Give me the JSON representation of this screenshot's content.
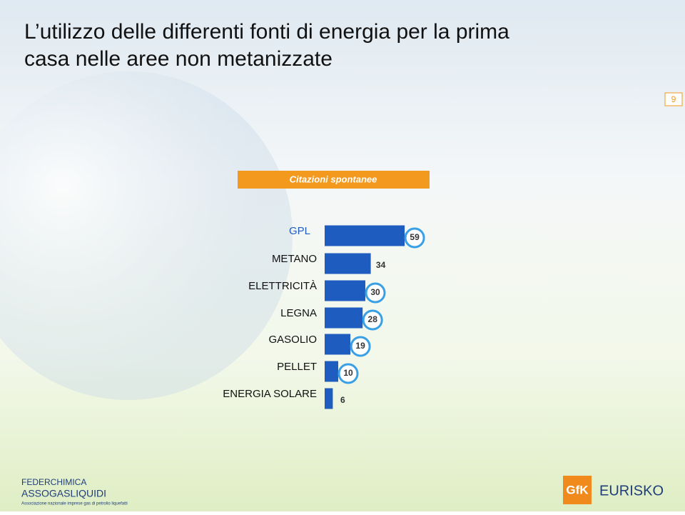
{
  "header": {
    "title": "L’utilizzo delle differenti fonti di energia per la prima casa nelle aree non metanizzate",
    "page_number": "9"
  },
  "chart_data": {
    "type": "hbar",
    "subtitle": "Citazioni spontanee",
    "categories": [
      "GPL",
      "METANO",
      "ELETTRICITÀ",
      "LEGNA",
      "GASOLIO",
      "PELLET",
      "ENERGIA SOLARE"
    ],
    "values": [
      59,
      34,
      30,
      28,
      19,
      10,
      6
    ],
    "highlighted": [
      true,
      false,
      true,
      true,
      true,
      true,
      false
    ],
    "color": "#1f5cc0",
    "highlight_color": "#3aa0e6"
  },
  "footer": {
    "left_logo": "FEDERCHIMICA",
    "left_brand": "ASSOGASLIQUIDI",
    "left_caption": "Associazione nazionale imprese gas di petrolio liquefatti",
    "right_logo": "GfK",
    "right_brand": "EURISKO"
  }
}
